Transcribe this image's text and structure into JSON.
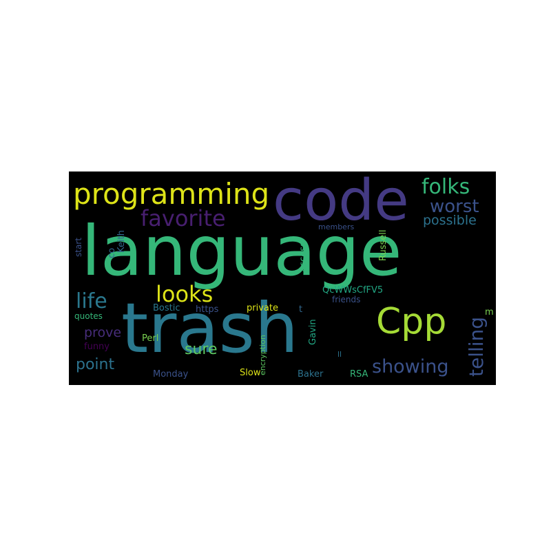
{
  "palette": {
    "background": "#000000",
    "page": "#ffffff"
  },
  "words": [
    {
      "text": "language",
      "color": "#35b779"
    },
    {
      "text": "trash",
      "color": "#2a788e"
    },
    {
      "text": "code",
      "color": "#443a83"
    },
    {
      "text": "Cpp",
      "color": "#a5db36"
    },
    {
      "text": "programming",
      "color": "#dde318"
    },
    {
      "text": "favorite",
      "color": "#481f70"
    },
    {
      "text": "folks",
      "color": "#35b779"
    },
    {
      "text": "worst",
      "color": "#3b528b"
    },
    {
      "text": "possible",
      "color": "#2c728e"
    },
    {
      "text": "looks",
      "color": "#dde318"
    },
    {
      "text": "life",
      "color": "#2a788e"
    },
    {
      "text": "telling",
      "color": "#3b528b"
    },
    {
      "text": "showing",
      "color": "#3b528b"
    },
    {
      "text": "prove",
      "color": "#472d7b"
    },
    {
      "text": "sure",
      "color": "#5ec962"
    },
    {
      "text": "point",
      "color": "#2c728e"
    },
    {
      "text": "members",
      "color": "#3b528b"
    },
    {
      "text": "start",
      "color": "#3b528b"
    },
    {
      "text": "co",
      "color": "#31688e"
    },
    {
      "text": "Keith",
      "color": "#31688e"
    },
    {
      "text": "access",
      "color": "#35b779"
    },
    {
      "text": "Russell",
      "color": "#7ad151"
    },
    {
      "text": "QcWWsCfFV5",
      "color": "#22a884"
    },
    {
      "text": "friends",
      "color": "#3b528b"
    },
    {
      "text": "private",
      "color": "#dde318"
    },
    {
      "text": "t",
      "color": "#31688e"
    },
    {
      "text": "Bostic",
      "color": "#2a788e"
    },
    {
      "text": "https",
      "color": "#3b528b"
    },
    {
      "text": "quotes",
      "color": "#35b779"
    },
    {
      "text": "m",
      "color": "#7ad151"
    },
    {
      "text": "funny",
      "color": "#440154"
    },
    {
      "text": "Perl",
      "color": "#7ad151"
    },
    {
      "text": "Gavin",
      "color": "#22a884"
    },
    {
      "text": "encryption",
      "color": "#5ec962"
    },
    {
      "text": "ll",
      "color": "#2c728e"
    },
    {
      "text": "Monday",
      "color": "#3b528b"
    },
    {
      "text": "Slow",
      "color": "#dde318"
    },
    {
      "text": "Baker",
      "color": "#2c728e"
    },
    {
      "text": "RSA",
      "color": "#35b779"
    }
  ]
}
